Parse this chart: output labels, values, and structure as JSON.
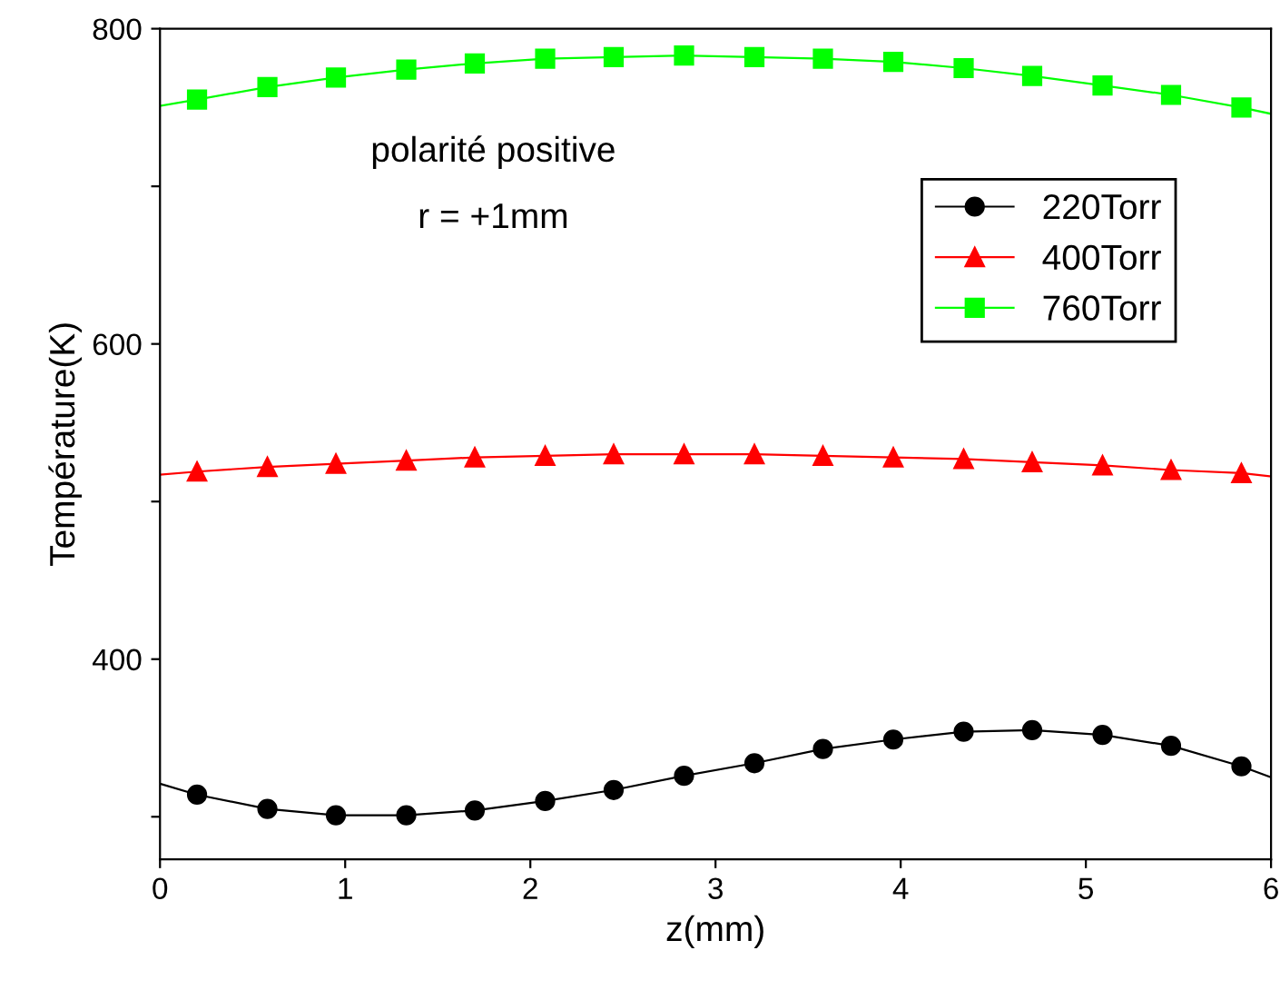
{
  "chart_data": {
    "type": "line",
    "xlabel": "z(mm)",
    "ylabel": "Température(K)",
    "annotations": [
      "polarité positive",
      "r = +1mm"
    ],
    "xlim": [
      0,
      6
    ],
    "xticks": [
      0,
      1,
      2,
      3,
      4,
      5,
      6
    ],
    "ylim": [
      273,
      800
    ],
    "yticks": [
      {
        "value": 300,
        "label": null
      },
      400,
      {
        "value": 500,
        "label": null
      },
      600,
      {
        "value": 700,
        "label": null
      },
      800
    ],
    "grid": false,
    "legend": "top right",
    "line_style": "solid",
    "x": [
      0,
      0.2,
      0.58,
      0.95,
      1.33,
      1.7,
      2.08,
      2.45,
      2.83,
      3.21,
      3.58,
      3.96,
      4.34,
      4.71,
      5.09,
      5.46,
      5.84,
      6
    ],
    "series": [
      {
        "name": "220Torr",
        "color": "#000000",
        "marker": "circle",
        "values": [
          321,
          314,
          305,
          301,
          301,
          304,
          310,
          317,
          326,
          334,
          343,
          349,
          354,
          355,
          352,
          345,
          332,
          325
        ]
      },
      {
        "name": "400Torr",
        "color": "#ff0000",
        "marker": "triangle",
        "values": [
          517,
          519,
          522,
          524,
          526,
          528,
          529,
          530,
          530,
          530,
          529,
          528,
          527,
          525,
          523,
          520,
          518,
          516
        ]
      },
      {
        "name": "760Torr",
        "color": "#00ff00",
        "marker": "square",
        "values": [
          751,
          755,
          763,
          769,
          774,
          778,
          781,
          782,
          783,
          782,
          781,
          779,
          775,
          770,
          764,
          758,
          750,
          746
        ]
      }
    ]
  }
}
